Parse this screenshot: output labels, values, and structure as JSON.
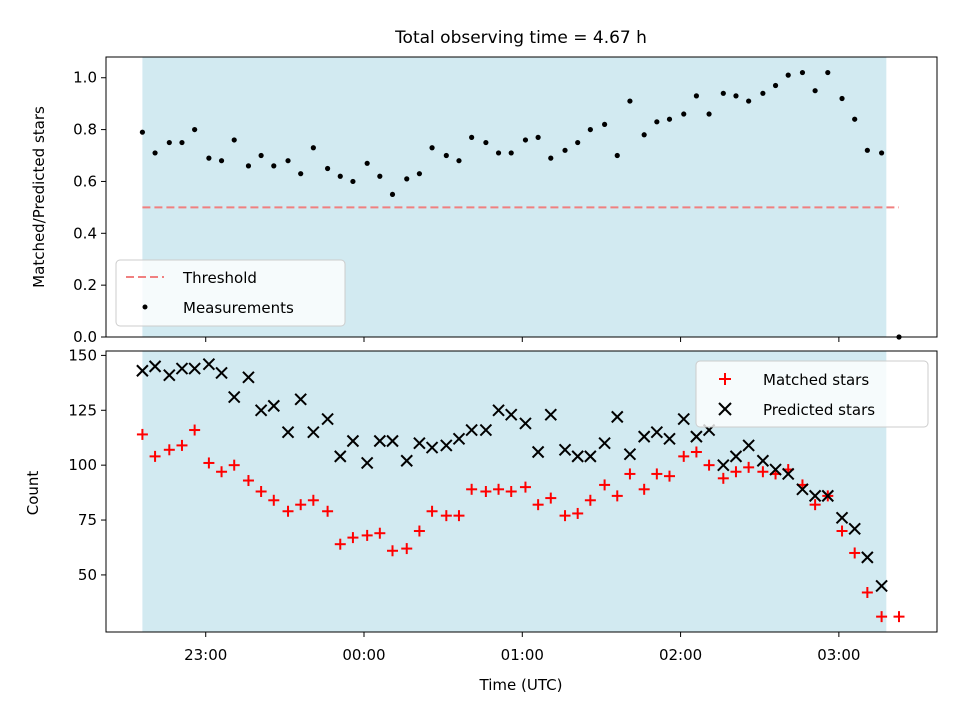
{
  "chart_data": {
    "title": "Total observing time = 4.67 h",
    "xlabel": "Time (UTC)",
    "xticks": [
      "23:00",
      "00:00",
      "01:00",
      "02:00",
      "03:00"
    ],
    "xlim_hours": [
      -1.63,
      3.62
    ],
    "shaded_span_hours": [
      -1.4,
      3.3
    ],
    "shade_color": "#add8e6",
    "top": {
      "type": "scatter",
      "ylabel": "Matched/Predicted stars",
      "ylim": [
        0,
        1.08
      ],
      "yticks": [
        "0.0",
        "0.2",
        "0.4",
        "0.6",
        "0.8",
        "1.0"
      ],
      "threshold": 0.5,
      "threshold_color": "#f08080",
      "legend": {
        "position": "lower-left",
        "entries": [
          "Threshold",
          "Measurements"
        ]
      },
      "series": [
        {
          "name": "Measurements",
          "color": "#000000",
          "x": [
            -1.4,
            -1.32,
            -1.23,
            -1.15,
            -1.07,
            -0.98,
            -0.9,
            -0.82,
            -0.73,
            -0.65,
            -0.57,
            -0.48,
            -0.4,
            -0.32,
            -0.23,
            -0.15,
            -0.07,
            0.02,
            0.1,
            0.18,
            0.27,
            0.35,
            0.43,
            0.52,
            0.6,
            0.68,
            0.77,
            0.85,
            0.93,
            1.02,
            1.1,
            1.18,
            1.27,
            1.35,
            1.43,
            1.52,
            1.6,
            1.68,
            1.77,
            1.85,
            1.93,
            2.02,
            2.1,
            2.18,
            2.27,
            2.35,
            2.43,
            2.52,
            2.6,
            2.68,
            2.77,
            2.85,
            2.93,
            3.02,
            3.1,
            3.18,
            3.27,
            3.38
          ],
          "y": [
            0.79,
            0.71,
            0.75,
            0.75,
            0.8,
            0.69,
            0.68,
            0.76,
            0.66,
            0.7,
            0.66,
            0.68,
            0.63,
            0.73,
            0.65,
            0.62,
            0.6,
            0.67,
            0.62,
            0.55,
            0.61,
            0.63,
            0.73,
            0.7,
            0.68,
            0.77,
            0.75,
            0.71,
            0.71,
            0.76,
            0.77,
            0.69,
            0.72,
            0.75,
            0.8,
            0.82,
            0.7,
            0.91,
            0.78,
            0.83,
            0.84,
            0.86,
            0.93,
            0.86,
            0.94,
            0.93,
            0.91,
            0.94,
            0.97,
            1.01,
            1.02,
            0.95,
            1.02,
            0.92,
            0.84,
            0.72,
            0.71,
            0.0
          ]
        }
      ]
    },
    "bottom": {
      "type": "scatter",
      "ylabel": "Count",
      "ylim": [
        24,
        152
      ],
      "yticks": [
        "50",
        "75",
        "100",
        "125",
        "150"
      ],
      "legend": {
        "position": "upper-right",
        "entries": [
          "Matched stars",
          "Predicted stars"
        ]
      },
      "series": [
        {
          "name": "Matched stars",
          "color": "#ff0000",
          "marker": "+",
          "x": [
            -1.4,
            -1.32,
            -1.23,
            -1.15,
            -1.07,
            -0.98,
            -0.9,
            -0.82,
            -0.73,
            -0.65,
            -0.57,
            -0.48,
            -0.4,
            -0.32,
            -0.23,
            -0.15,
            -0.07,
            0.02,
            0.1,
            0.18,
            0.27,
            0.35,
            0.43,
            0.52,
            0.6,
            0.68,
            0.77,
            0.85,
            0.93,
            1.02,
            1.1,
            1.18,
            1.27,
            1.35,
            1.43,
            1.52,
            1.6,
            1.68,
            1.77,
            1.85,
            1.93,
            2.02,
            2.1,
            2.18,
            2.27,
            2.35,
            2.43,
            2.52,
            2.6,
            2.68,
            2.77,
            2.85,
            2.93,
            3.02,
            3.1,
            3.18,
            3.27,
            3.38
          ],
          "y": [
            114,
            104,
            107,
            109,
            116,
            101,
            97,
            100,
            93,
            88,
            84,
            79,
            82,
            84,
            79,
            64,
            67,
            68,
            69,
            61,
            62,
            70,
            79,
            77,
            77,
            89,
            88,
            89,
            88,
            90,
            82,
            85,
            77,
            78,
            84,
            91,
            86,
            96,
            89,
            96,
            95,
            104,
            106,
            100,
            94,
            97,
            99,
            97,
            96,
            98,
            91,
            82,
            86,
            70,
            60,
            42,
            31,
            31
          ]
        },
        {
          "name": "Predicted stars",
          "color": "#000000",
          "marker": "x",
          "x": [
            -1.4,
            -1.32,
            -1.23,
            -1.15,
            -1.07,
            -0.98,
            -0.9,
            -0.82,
            -0.73,
            -0.65,
            -0.57,
            -0.48,
            -0.4,
            -0.32,
            -0.23,
            -0.15,
            -0.07,
            0.02,
            0.1,
            0.18,
            0.27,
            0.35,
            0.43,
            0.52,
            0.6,
            0.68,
            0.77,
            0.85,
            0.93,
            1.02,
            1.1,
            1.18,
            1.27,
            1.35,
            1.43,
            1.52,
            1.6,
            1.68,
            1.77,
            1.85,
            1.93,
            2.02,
            2.1,
            2.18,
            2.27,
            2.35,
            2.43,
            2.52,
            2.6,
            2.68,
            2.77,
            2.85,
            2.93,
            3.02,
            3.1,
            3.18,
            3.27
          ],
          "y": [
            143,
            145,
            141,
            144,
            144,
            146,
            142,
            131,
            140,
            125,
            127,
            115,
            130,
            115,
            121,
            104,
            111,
            101,
            111,
            111,
            102,
            110,
            108,
            109,
            112,
            116,
            116,
            125,
            123,
            119,
            106,
            123,
            107,
            104,
            104,
            110,
            122,
            105,
            113,
            115,
            112,
            121,
            113,
            116,
            100,
            104,
            109,
            102,
            98,
            96,
            89,
            86,
            86,
            76,
            71,
            58,
            45
          ]
        }
      ]
    }
  }
}
